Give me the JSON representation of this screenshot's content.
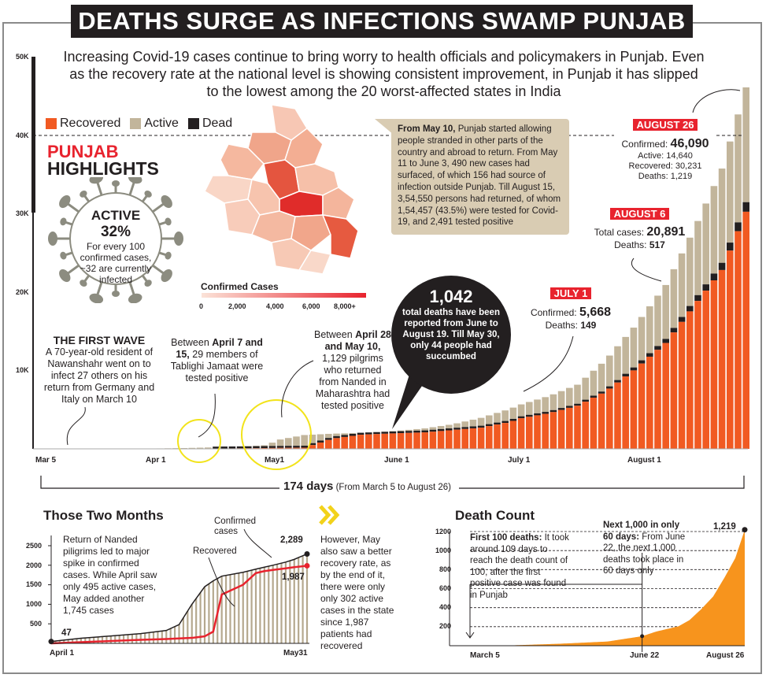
{
  "headline": "DEATHS SURGE AS INFECTIONS SWAMP PUNJAB",
  "intro": "Increasing Covid-19 cases continue to bring worry to health officials and policymakers in Punjab. Even as the recovery rate at the national level is showing consistent improvement, in Punjab it has slipped to the lowest among the 20 worst-affected states in India",
  "legend": [
    {
      "label": "Recovered",
      "color": "#f15a22"
    },
    {
      "label": "Active",
      "color": "#c2b59b"
    },
    {
      "label": "Dead",
      "color": "#231f20"
    }
  ],
  "highlights": {
    "title_red": "PUNJAB",
    "title_black": "HIGHLIGHTS",
    "active_label": "ACTIVE",
    "active_value": "32%",
    "active_note": "For every 100 confirmed cases, ~32 are currently infected"
  },
  "map": {
    "legend_title": "Confirmed Cases",
    "legend_ticks": [
      "0",
      "2,000",
      "4,000",
      "6,000",
      "8,000+"
    ]
  },
  "annotations": {
    "first_wave_title": "THE FIRST WAVE",
    "first_wave_text": "A 70-year-old resident of Nawanshahr went on to infect 27 others on his return  from Germany and Italy on March 10",
    "tablighi_pre": "Between ",
    "tablighi_bold": "April 7 and 15,",
    "tablighi_post": " 29 members of Tablighi Jamaat were tested positive",
    "nanded_pre": "Between ",
    "nanded_bold": "April 28 and May 10,",
    "nanded_post": " 1,129 pilgrims who returned from Nanded in Maharashtra had tested positive",
    "returnees_bold": "From May 10,",
    "returnees_text": " Punjab started allowing people stranded in other parts of the country and abroad to return. From May 11 to June 3, 490 new cases had surfaced, of which 156 had source of infection outside Punjab. Till August 15, 3,54,550 persons had returned, of whom 1,54,457 (43.5%) were tested for Covid-19, and 2,491 tested positive",
    "bubble_value": "1,042",
    "bubble_text": "total deaths have been reported from June to August 19. Till May 30, only 44 people had succumbed",
    "july1": {
      "label": "JULY 1",
      "confirmed_label": "Confirmed:",
      "confirmed": "5,668",
      "deaths_label": "Deaths:",
      "deaths": "149"
    },
    "aug6": {
      "label": "AUGUST 6",
      "total_label": "Total cases:",
      "total": "20,891",
      "deaths_label": "Deaths:",
      "deaths": "517"
    },
    "aug26": {
      "label": "AUGUST 26",
      "confirmed_label": "Confirmed:",
      "confirmed": "46,090",
      "active": "Active: 14,640",
      "recovered": "Recovered: 30,231",
      "deaths": "Deaths: 1,219"
    },
    "span_bold": "174 days",
    "span_text": "(From March 5 to August 26)"
  },
  "two_months": {
    "title": "Those Two Months",
    "note_left": "Return of Nanded piligrims led to major spike in confirmed cases. While April saw only 495 active cases, May added another 1,745 cases",
    "label_confirmed": "Confirmed cases",
    "label_recovered": "Recovered",
    "start_value": "47",
    "end_confirmed": "2,289",
    "end_recovered": "1,987",
    "note_right": "However, May also saw a better recovery rate, as by the end of it, there were only only 302 active cases in the state since 1,987 patients had recovered"
  },
  "death_count": {
    "title": "Death Count",
    "note1_bold": "First 100 deaths:",
    "note1": " It took around 109 days to reach the death count of 100, after the first positive case was found in Punjab",
    "note2_bold": "Next 1,000 in only 60 days:",
    "note2": " From June 22, the next 1,000 deaths took place in 60 days only",
    "end_value": "1,219"
  },
  "chart_data": [
    {
      "type": "bar",
      "title": "Punjab Covid-19 cases (stacked: recovered, dead, active)",
      "x": [
        "Mar 5",
        "Mar 12",
        "Mar 19",
        "Mar 26",
        "Apr 1",
        "Apr 8",
        "Apr 15",
        "Apr 22",
        "Apr 29",
        "May 1",
        "May 8",
        "May 15",
        "May 22",
        "May 31",
        "Jun 7",
        "Jun 14",
        "Jun 21",
        "Jun 28",
        "Jul 1",
        "Jul 8",
        "Jul 15",
        "Jul 22",
        "Jul 29",
        "Aug 6",
        "Aug 13",
        "Aug 20",
        "Aug 26"
      ],
      "day": [
        0,
        7,
        14,
        21,
        27,
        34,
        41,
        48,
        55,
        57,
        64,
        71,
        78,
        87,
        94,
        101,
        108,
        115,
        118,
        125,
        132,
        139,
        146,
        154,
        161,
        168,
        174
      ],
      "series": [
        {
          "name": "Confirmed",
          "values": [
            1,
            30,
            40,
            38,
            47,
            100,
            186,
            283,
            480,
            1100,
            1762,
            1935,
            2028,
            2289,
            2608,
            3140,
            3952,
            5056,
            5668,
            6749,
            8178,
            11301,
            15456,
            20891,
            27936,
            35738,
            46090
          ]
        },
        {
          "name": "Recovered",
          "values": [
            0,
            0,
            0,
            1,
            1,
            14,
            27,
            64,
            104,
            117,
            150,
            1300,
            1800,
            1987,
            2100,
            2400,
            2700,
            3400,
            3900,
            4554,
            5500,
            7300,
            10000,
            13500,
            18200,
            22800,
            30231
          ]
        },
        {
          "name": "Dead",
          "values": [
            0,
            1,
            1,
            1,
            4,
            8,
            13,
            16,
            20,
            21,
            31,
            32,
            40,
            44,
            51,
            67,
            97,
            128,
            149,
            175,
            204,
            269,
            377,
            517,
            711,
            921,
            1219
          ]
        }
      ],
      "xticks": [
        "Mar 5",
        "Apr 1",
        "May1",
        "June 1",
        "July 1",
        "August 1"
      ],
      "yticks": [
        "10K",
        "20K",
        "30K",
        "40K",
        "50K"
      ],
      "ylim": [
        0,
        50000
      ]
    },
    {
      "type": "line",
      "title": "Those Two Months",
      "xticks": [
        "April 1",
        "May31"
      ],
      "yticks": [
        "500",
        "1000",
        "1500",
        "2000",
        "2500"
      ],
      "ylim": [
        0,
        2700
      ],
      "day": [
        0,
        7,
        14,
        21,
        27,
        30,
        33,
        36,
        38,
        40,
        45,
        48,
        50,
        52,
        55,
        57,
        60
      ],
      "series": [
        {
          "name": "Confirmed",
          "values": [
            47,
            130,
            190,
            250,
            330,
            480,
            1000,
            1450,
            1600,
            1720,
            1820,
            1900,
            1950,
            2000,
            2080,
            2150,
            2289
          ]
        },
        {
          "name": "Recovered",
          "values": [
            1,
            30,
            60,
            90,
            110,
            125,
            140,
            180,
            300,
            1250,
            1500,
            1800,
            1850,
            1880,
            1920,
            1950,
            1987
          ]
        }
      ]
    },
    {
      "type": "area",
      "title": "Death Count",
      "xticks": [
        "March 5",
        "June 22",
        "August 26"
      ],
      "yticks": [
        "200",
        "400",
        "600",
        "800",
        "1000",
        "1200"
      ],
      "ylim": [
        0,
        1300
      ],
      "day": [
        0,
        27,
        57,
        87,
        109,
        118,
        132,
        139,
        146,
        154,
        161,
        168,
        174
      ],
      "values": [
        0,
        4,
        21,
        44,
        100,
        149,
        204,
        269,
        377,
        517,
        711,
        921,
        1219
      ]
    }
  ]
}
